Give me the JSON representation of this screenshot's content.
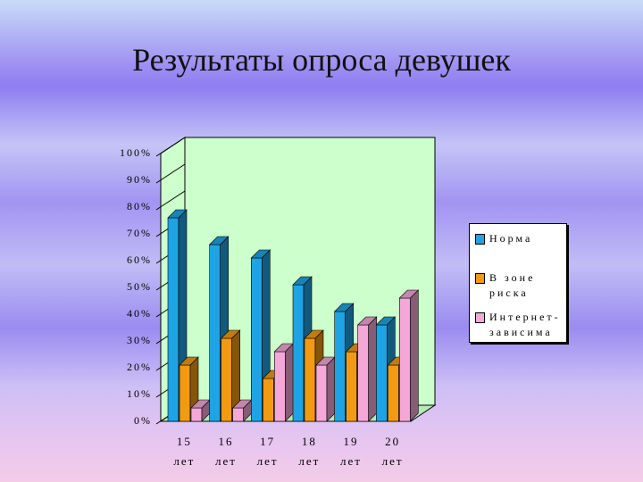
{
  "chart_data": {
    "type": "bar3d",
    "title": "Результаты опроса девушек",
    "categories": [
      "15 лет",
      "16 лет",
      "17 лет",
      "18 лет",
      "19 лет",
      "20 лет"
    ],
    "series": [
      {
        "name": "Норма",
        "color": "#1ea4e4",
        "values": [
          76,
          66,
          61,
          51,
          41,
          36
        ]
      },
      {
        "name": "В зоне риска",
        "color": "#f29a12",
        "values": [
          21,
          31,
          16,
          31,
          26,
          21
        ]
      },
      {
        "name": "Интернет-зависима",
        "color": "#f4a8d8",
        "values": [
          5,
          5,
          26,
          21,
          36,
          46
        ]
      }
    ],
    "ylim": [
      0,
      100
    ],
    "yticks": [
      {
        "value": 0,
        "label": "0%"
      },
      {
        "value": 10,
        "label": "10%"
      },
      {
        "value": 20,
        "label": "20%"
      },
      {
        "value": 30,
        "label": "30%"
      },
      {
        "value": 40,
        "label": "40%"
      },
      {
        "value": 50,
        "label": "50%"
      },
      {
        "value": 60,
        "label": "60%"
      },
      {
        "value": 70,
        "label": "70%"
      },
      {
        "value": 80,
        "label": "80%"
      },
      {
        "value": 90,
        "label": "90%"
      },
      {
        "value": 100,
        "label": "100%"
      }
    ],
    "legend": "right",
    "wall_color": "#ccffcc"
  }
}
